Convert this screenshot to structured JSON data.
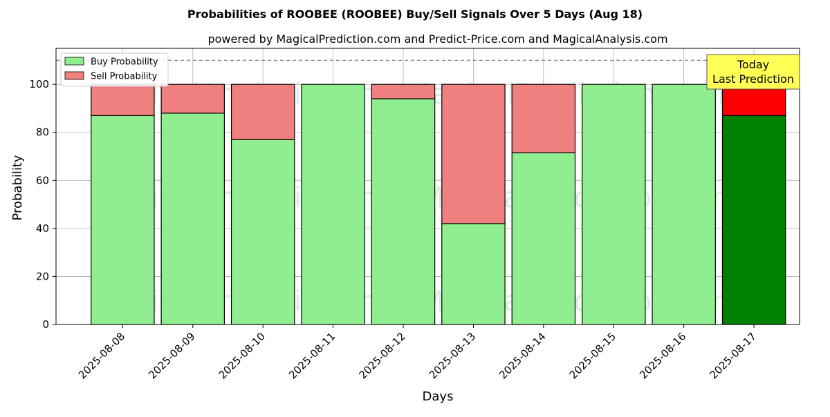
{
  "chart_data": {
    "type": "bar",
    "stacked": true,
    "title": "Probabilities of ROOBEE (ROOBEE) Buy/Sell Signals Over 5 Days (Aug 18)",
    "subtitle": "powered by MagicalPrediction.com and Predict-Price.com and MagicalAnalysis.com",
    "xlabel": "Days",
    "ylabel": "Probability",
    "ylim": [
      0,
      115
    ],
    "yticks": [
      0,
      20,
      40,
      60,
      80,
      100
    ],
    "grid": true,
    "reference_line": 110,
    "legend_position": "top-left",
    "categories": [
      "2025-08-08",
      "2025-08-09",
      "2025-08-10",
      "2025-08-11",
      "2025-08-12",
      "2025-08-13",
      "2025-08-14",
      "2025-08-15",
      "2025-08-16",
      "2025-08-17"
    ],
    "series": [
      {
        "name": "Buy Probability",
        "color": "#90ee90",
        "highlight_color": "#008000",
        "values": [
          87,
          88,
          77,
          100,
          94,
          42,
          71.5,
          100,
          100,
          87
        ]
      },
      {
        "name": "Sell Probability",
        "color": "#f08080",
        "highlight_color": "#ff0000",
        "values": [
          13,
          12,
          23,
          0,
          6,
          58,
          28.5,
          0,
          0,
          13
        ]
      }
    ],
    "highlight_index": 9,
    "annotation": {
      "line1": "Today",
      "line2": "Last Prediction",
      "background": "#ffff55"
    },
    "watermarks": [
      "MagicalAnalysis.com",
      "MagicalPrediction.com"
    ]
  }
}
